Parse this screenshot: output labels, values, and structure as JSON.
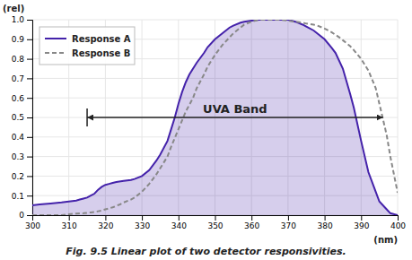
{
  "chart_data": {
    "type": "line",
    "title": "Fig. 9.5  Linear plot of two detector responsivities.",
    "xlabel": "(nm)",
    "ylabel": "(rel)",
    "xlim": [
      300,
      400
    ],
    "ylim": [
      0,
      1.0
    ],
    "xticks": [
      300,
      310,
      320,
      330,
      340,
      350,
      360,
      370,
      380,
      390,
      400
    ],
    "yticks": [
      0,
      0.1,
      0.2,
      0.3,
      0.4,
      0.5,
      0.6,
      0.7,
      0.8,
      0.9,
      {
        "value": 1.0,
        "label": "1.0"
      }
    ],
    "grid": true,
    "legend": "upper left",
    "annotations": [
      {
        "text": "UVA Band",
        "x": [
          315,
          396
        ],
        "y": 0.5
      }
    ],
    "series": [
      {
        "name": "Response A",
        "color": "#4422aa",
        "type": "area",
        "line_style": "solid",
        "x": [
          300,
          302,
          305,
          308,
          310,
          312,
          313,
          314,
          315,
          316,
          317,
          318,
          319,
          320,
          321,
          322,
          323,
          325,
          327,
          328,
          330,
          332,
          334,
          335,
          337,
          338,
          339,
          340,
          341,
          342,
          343,
          345,
          347,
          348,
          350,
          352,
          354,
          355,
          357,
          358,
          360,
          362,
          364,
          365,
          367,
          368,
          370,
          372,
          374,
          375,
          377,
          378,
          380,
          382,
          383,
          385,
          387,
          388,
          390,
          392,
          394,
          395,
          397,
          398,
          400
        ],
        "values": [
          0.05,
          0.055,
          0.06,
          0.065,
          0.07,
          0.075,
          0.08,
          0.085,
          0.09,
          0.1,
          0.11,
          0.13,
          0.145,
          0.155,
          0.16,
          0.165,
          0.17,
          0.175,
          0.18,
          0.185,
          0.2,
          0.23,
          0.28,
          0.31,
          0.38,
          0.44,
          0.5,
          0.57,
          0.63,
          0.68,
          0.72,
          0.78,
          0.83,
          0.86,
          0.9,
          0.93,
          0.96,
          0.97,
          0.985,
          0.99,
          0.995,
          1.0,
          1.0,
          1.0,
          1.0,
          1.0,
          1.0,
          0.99,
          0.975,
          0.965,
          0.945,
          0.93,
          0.9,
          0.855,
          0.83,
          0.75,
          0.62,
          0.55,
          0.38,
          0.22,
          0.12,
          0.07,
          0.03,
          0.01,
          0.0
        ]
      },
      {
        "name": "Response B",
        "color": "#888888",
        "type": "line",
        "line_style": "dashed",
        "x": [
          300,
          305,
          308,
          310,
          312,
          314,
          315,
          316,
          317,
          318,
          319,
          320,
          322,
          324,
          325,
          327,
          328,
          330,
          332,
          334,
          335,
          337,
          338,
          340,
          342,
          344,
          345,
          347,
          348,
          350,
          352,
          354,
          355,
          357,
          358,
          360,
          362,
          364,
          365,
          367,
          368,
          370,
          372,
          374,
          375,
          377,
          378,
          380,
          382,
          384,
          385,
          387,
          388,
          390,
          392,
          394,
          395,
          397,
          398,
          400
        ],
        "values": [
          0.0,
          0.0,
          0.0,
          0.005,
          0.008,
          0.01,
          0.012,
          0.014,
          0.016,
          0.02,
          0.024,
          0.03,
          0.04,
          0.055,
          0.065,
          0.08,
          0.09,
          0.12,
          0.16,
          0.21,
          0.24,
          0.3,
          0.35,
          0.44,
          0.53,
          0.6,
          0.65,
          0.72,
          0.76,
          0.82,
          0.87,
          0.91,
          0.93,
          0.96,
          0.975,
          0.99,
          1.0,
          1.0,
          1.0,
          1.0,
          1.0,
          0.995,
          0.99,
          0.985,
          0.98,
          0.975,
          0.97,
          0.955,
          0.935,
          0.91,
          0.895,
          0.865,
          0.845,
          0.8,
          0.74,
          0.65,
          0.57,
          0.41,
          0.3,
          0.115
        ]
      }
    ]
  }
}
